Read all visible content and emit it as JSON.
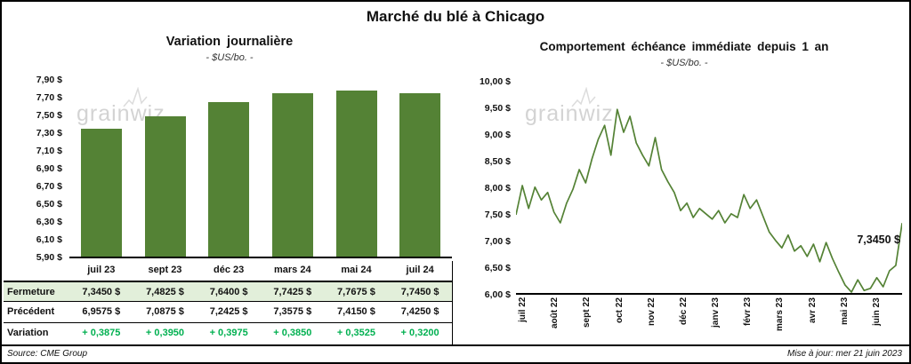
{
  "page": {
    "title": "Marché du blé à Chicago",
    "source": "Source: CME Group",
    "updated": "Mise à jour: mer 21 juin 2023",
    "watermark": "grainwiz"
  },
  "colors": {
    "series_green": "#548235",
    "highlight_row_bg": "#E2EFDA",
    "variation_green": "#00B050"
  },
  "chart_data": [
    {
      "id": "daily-variation",
      "type": "bar",
      "title": "Variation journalière",
      "subtitle": "- $US/bo. -",
      "categories": [
        "juil 23",
        "sept 23",
        "déc 23",
        "mars 24",
        "mai 24",
        "juil 24"
      ],
      "values": [
        7.345,
        7.4825,
        7.64,
        7.7425,
        7.7675,
        7.745
      ],
      "ylim": [
        5.9,
        7.9
      ],
      "ytick_step": 0.2,
      "ytick_labels": [
        "7,90 $",
        "7,70 $",
        "7,50 $",
        "7,30 $",
        "7,10 $",
        "6,90 $",
        "6,70 $",
        "6,50 $",
        "6,30 $",
        "6,10 $",
        "5,90 $"
      ],
      "grid": false,
      "bar_color": "#548235"
    },
    {
      "id": "front-month-one-year",
      "type": "line",
      "title": "Comportement échéance immédiate depuis 1 an",
      "subtitle": "- $US/bo. -",
      "x_labels": [
        "juil 22",
        "août 22",
        "sept 22",
        "oct 22",
        "nov 22",
        "déc 22",
        "janv 23",
        "févr 23",
        "mars 23",
        "avr 23",
        "mai 23",
        "juin 23"
      ],
      "values": [
        7.5,
        8.05,
        7.62,
        8.02,
        7.78,
        7.92,
        7.55,
        7.35,
        7.72,
        7.98,
        8.35,
        8.1,
        8.55,
        8.92,
        9.18,
        8.62,
        9.48,
        9.05,
        9.35,
        8.85,
        8.62,
        8.42,
        8.95,
        8.35,
        8.12,
        7.92,
        7.58,
        7.72,
        7.45,
        7.62,
        7.52,
        7.42,
        7.58,
        7.35,
        7.52,
        7.45,
        7.88,
        7.62,
        7.78,
        7.48,
        7.18,
        7.02,
        6.88,
        7.12,
        6.82,
        6.92,
        6.72,
        6.95,
        6.62,
        6.98,
        6.68,
        6.42,
        6.18,
        6.05,
        6.28,
        6.08,
        6.12,
        6.32,
        6.15,
        6.45,
        6.55,
        7.345
      ],
      "ylim": [
        6.0,
        10.0
      ],
      "ytick_step": 0.5,
      "ytick_labels": [
        "10,00 $",
        "9,50 $",
        "9,00 $",
        "8,50 $",
        "8,00 $",
        "7,50 $",
        "7,00 $",
        "6,50 $",
        "6,00 $"
      ],
      "grid": false,
      "line_color": "#548235",
      "annotation": {
        "text": "7,3450 $",
        "value": 7.345
      }
    }
  ],
  "table": {
    "rows": [
      {
        "label": "Fermeture",
        "highlight": true,
        "values": [
          "7,3450  $",
          "7,4825  $",
          "7,6400  $",
          "7,7425  $",
          "7,7675  $",
          "7,7450  $"
        ]
      },
      {
        "label": "Précédent",
        "values": [
          "6,9575  $",
          "7,0875  $",
          "7,2425  $",
          "7,3575  $",
          "7,4150  $",
          "7,4250  $"
        ]
      },
      {
        "label": "Variation",
        "green_values": true,
        "values": [
          "+ 0,3875",
          "+ 0,3950",
          "+ 0,3975",
          "+ 0,3850",
          "+ 0,3525",
          "+ 0,3200"
        ]
      }
    ]
  }
}
